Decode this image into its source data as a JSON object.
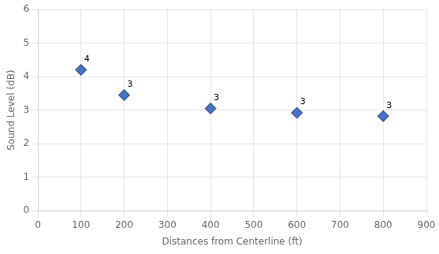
{
  "chart_data": {
    "type": "scatter",
    "x": [
      100,
      200,
      400,
      600,
      800
    ],
    "values": [
      4.2,
      3.45,
      3.05,
      2.92,
      2.82
    ],
    "value_labels": [
      "4",
      "3",
      "3",
      "3",
      "3"
    ],
    "data_labels": true,
    "color": "#4472C4",
    "marker": "diamond",
    "xlabel": "Distances from Centerline (ft)",
    "ylabel": "Sound Level (dB)",
    "xlim": [
      0,
      900
    ],
    "ylim": [
      0,
      6
    ],
    "xticks": [
      0,
      100,
      200,
      300,
      400,
      500,
      600,
      700,
      800,
      900
    ],
    "yticks": [
      0,
      1,
      2,
      3,
      4,
      5,
      6
    ],
    "grid": true
  }
}
